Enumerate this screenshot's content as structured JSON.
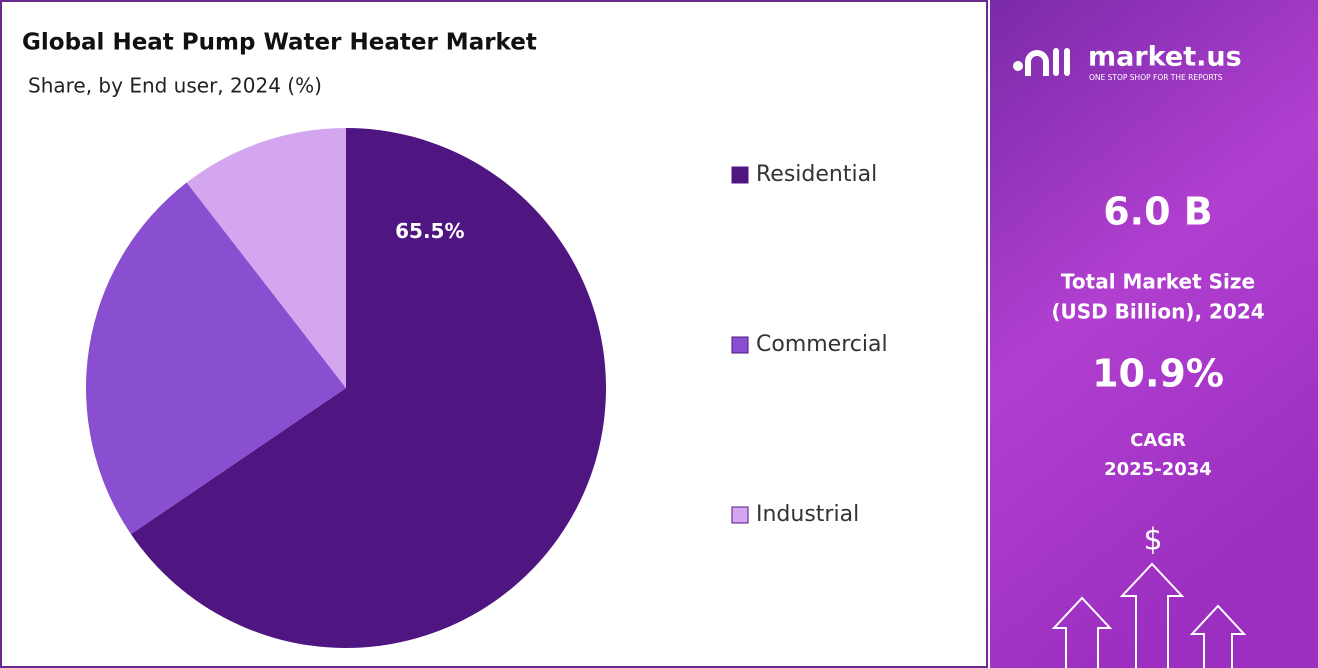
{
  "chart_data": {
    "type": "pie",
    "title": "Global Heat Pump Water Heater Market",
    "subtitle": "Share, by End user, 2024 (%)",
    "categories": [
      "Residential",
      "Commercial",
      "Industrial"
    ],
    "values": [
      65.5,
      24,
      10.5
    ],
    "value_labels": [
      "65.5%",
      null,
      null
    ],
    "colors": [
      "#4f1580",
      "#8a4fd0",
      "#d4a6ef"
    ],
    "legend": "right"
  },
  "panel": {
    "logo": "market.us",
    "tagline": "ONE STOP SHOP FOR THE REPORTS",
    "market_size": "6.0 B",
    "market_size_label_1": "Total Market Size",
    "market_size_label_2": "(USD Billion), 2024",
    "cagr": "10.9%",
    "cagr_label_1": "CAGR",
    "cagr_label_2": "2025-2034",
    "icon": "$"
  }
}
